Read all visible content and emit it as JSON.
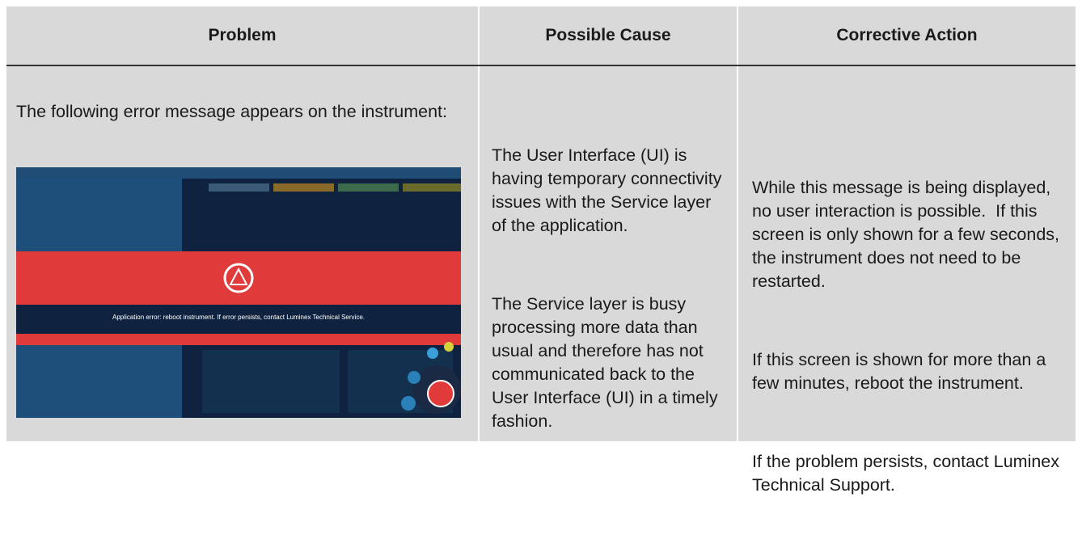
{
  "table": {
    "headers": [
      "Problem",
      "Possible Cause",
      "Corrective Action"
    ],
    "rows": [
      {
        "problem": {
          "text": "The following error message appears on the instrument:",
          "screenshot_message": "Application error: reboot instrument. If error persists, contact Luminex Technical Service."
        },
        "possible_cause": [
          "The User Interface (UI) is having temporary connectivity issues with the Service layer of the application.",
          "The Service layer is busy processing more data than usual and therefore has not communicated back to the User Interface (UI) in a timely fashion."
        ],
        "corrective_action": [
          "While this message is being displayed, no user interaction is possible.  If this screen is only shown for a few seconds, the instrument does not need to be restarted.",
          "If this screen is shown for more than a few minutes, reboot the instrument.",
          "If the problem persists, contact Luminex Technical Support."
        ]
      }
    ]
  }
}
